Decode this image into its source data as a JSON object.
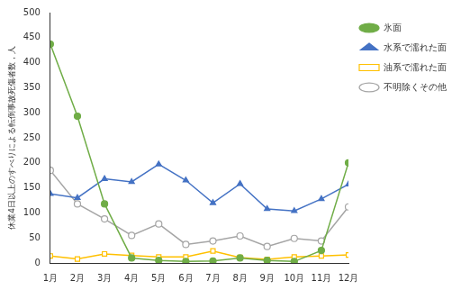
{
  "chart_data": {
    "type": "line",
    "y_label": "休業4日以上のすべりによる転倒事故死傷者数，人",
    "categories": [
      "1月",
      "2月",
      "3月",
      "4月",
      "5月",
      "6月",
      "7月",
      "8月",
      "9月",
      "10月",
      "11月",
      "12月"
    ],
    "series": [
      {
        "name": "氷面",
        "color": "#70ad47",
        "marker": "circle",
        "values": [
          437,
          293,
          118,
          10,
          5,
          3,
          4,
          10,
          5,
          3,
          25,
          200
        ]
      },
      {
        "name": "水系で濡れた面",
        "color": "#4472c4",
        "marker": "triangle",
        "values": [
          138,
          130,
          168,
          162,
          197,
          165,
          120,
          158,
          108,
          104,
          128,
          157
        ]
      },
      {
        "name": "油系で濡れた面",
        "color": "#ffc000",
        "marker": "open_square",
        "values": [
          14,
          8,
          18,
          15,
          12,
          12,
          24,
          11,
          7,
          12,
          14,
          16
        ]
      },
      {
        "name": "不明除くその他",
        "color": "#a5a5a5",
        "marker": "open_circle",
        "values": [
          185,
          118,
          88,
          55,
          78,
          37,
          44,
          54,
          33,
          49,
          44,
          112
        ]
      }
    ],
    "ylim": [
      0,
      500
    ],
    "yticks": [
      0,
      50,
      100,
      150,
      200,
      250,
      300,
      350,
      400,
      450,
      500
    ],
    "grid": false,
    "legend": "right"
  }
}
